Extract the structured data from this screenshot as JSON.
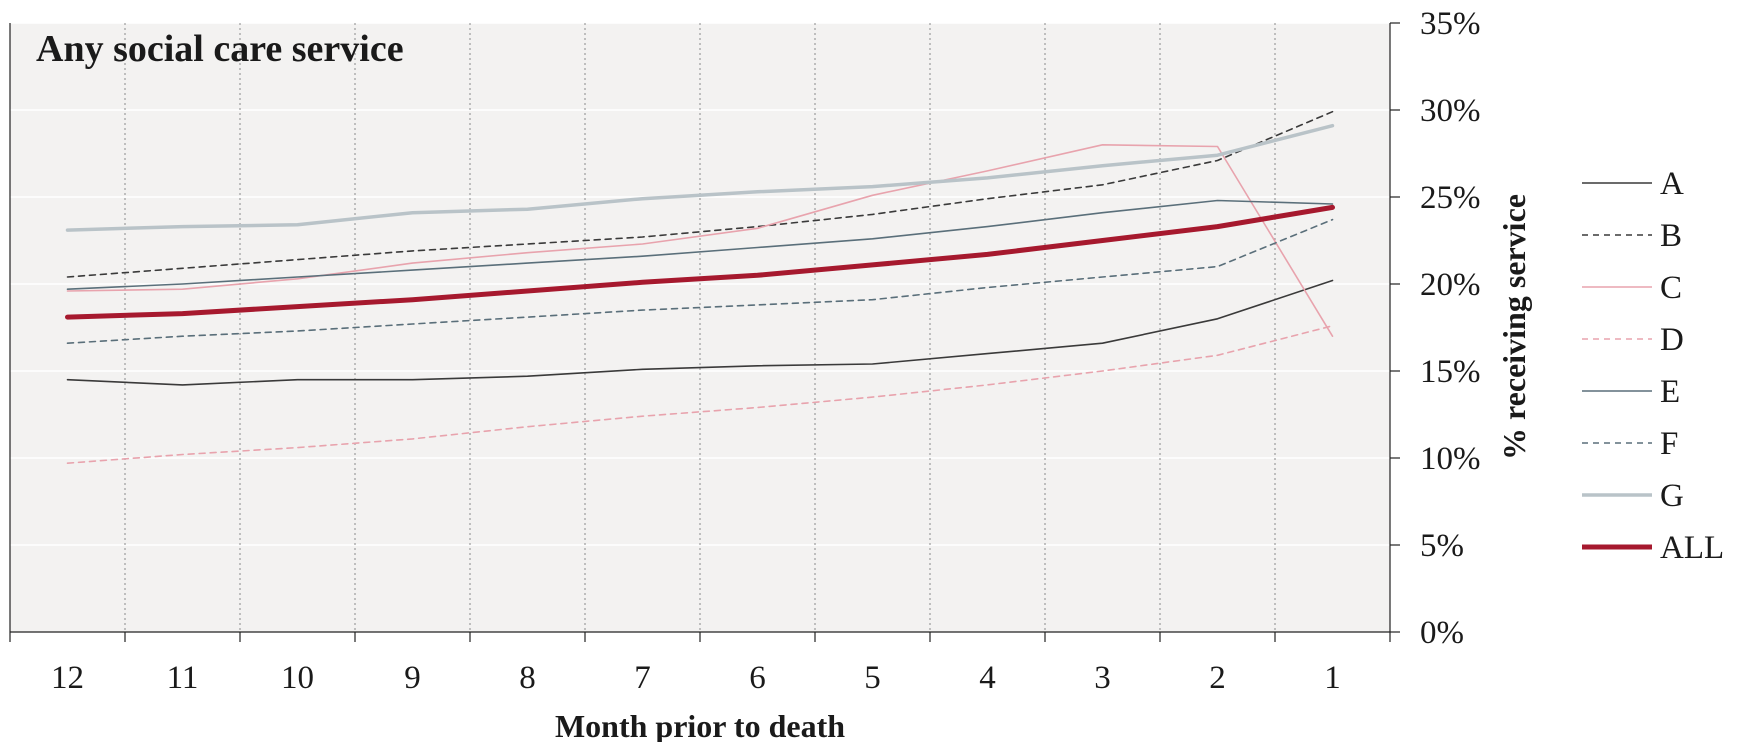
{
  "chart_data": {
    "type": "line",
    "title": "Any social care service",
    "xlabel": "Month prior to death",
    "ylabel": "% receiving service",
    "x": [
      "12",
      "11",
      "10",
      "9",
      "8",
      "7",
      "6",
      "5",
      "4",
      "3",
      "2",
      "1"
    ],
    "ylim": [
      0,
      35
    ],
    "y_ticks": [
      {
        "value": 0,
        "label": "0%"
      },
      {
        "value": 5,
        "label": "5%"
      },
      {
        "value": 10,
        "label": "10%"
      },
      {
        "value": 15,
        "label": "15%"
      },
      {
        "value": 20,
        "label": "20%"
      },
      {
        "value": 25,
        "label": "25%"
      },
      {
        "value": 30,
        "label": "30%"
      },
      {
        "value": 35,
        "label": "35%"
      }
    ],
    "grid": "horizontal solid white, vertical dotted grey",
    "legend_position": "right",
    "series": [
      {
        "name": "A",
        "color": "#3a3a3a",
        "style": "solid",
        "weight": "thin",
        "values": [
          14.5,
          14.2,
          14.5,
          14.5,
          14.7,
          15.1,
          15.3,
          15.4,
          16.0,
          16.6,
          18.0,
          20.2
        ]
      },
      {
        "name": "B",
        "color": "#3a3a3a",
        "style": "dashed",
        "weight": "thin",
        "values": [
          20.4,
          20.9,
          21.4,
          21.9,
          22.3,
          22.7,
          23.3,
          24.0,
          24.9,
          25.7,
          27.1,
          29.9
        ]
      },
      {
        "name": "C",
        "color": "#e8a3ad",
        "style": "solid",
        "weight": "thin",
        "values": [
          19.6,
          19.7,
          20.3,
          21.2,
          21.8,
          22.3,
          23.2,
          25.1,
          26.5,
          28.0,
          27.9,
          17.0
        ]
      },
      {
        "name": "D",
        "color": "#e8a3ad",
        "style": "dashed",
        "weight": "thin",
        "values": [
          9.7,
          10.2,
          10.6,
          11.1,
          11.8,
          12.4,
          12.9,
          13.5,
          14.2,
          15.0,
          15.9,
          17.6
        ]
      },
      {
        "name": "E",
        "color": "#5a6f7a",
        "style": "solid",
        "weight": "thin",
        "values": [
          19.7,
          20.0,
          20.4,
          20.8,
          21.2,
          21.6,
          22.1,
          22.6,
          23.3,
          24.1,
          24.8,
          24.6
        ]
      },
      {
        "name": "F",
        "color": "#5a6f7a",
        "style": "dashed",
        "weight": "thin",
        "values": [
          16.6,
          17.0,
          17.3,
          17.7,
          18.1,
          18.5,
          18.8,
          19.1,
          19.8,
          20.4,
          21.0,
          23.7
        ]
      },
      {
        "name": "G",
        "color": "#b9c3c8",
        "style": "solid",
        "weight": "thick",
        "values": [
          23.1,
          23.3,
          23.4,
          24.1,
          24.3,
          24.9,
          25.3,
          25.6,
          26.1,
          26.8,
          27.4,
          29.1
        ]
      },
      {
        "name": "ALL",
        "color": "#a6192e",
        "style": "solid",
        "weight": "bold",
        "values": [
          18.1,
          18.3,
          18.7,
          19.1,
          19.6,
          20.1,
          20.5,
          21.1,
          21.7,
          22.5,
          23.3,
          24.4
        ]
      }
    ]
  }
}
